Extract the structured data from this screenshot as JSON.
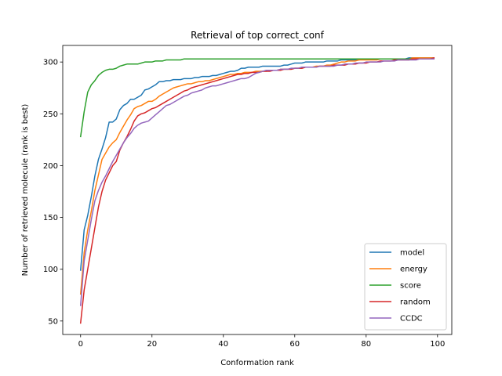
{
  "chart_data": {
    "type": "line",
    "title": "Retrieval of top correct_conf",
    "xlabel": "Conformation rank",
    "ylabel": "Number of retrieved molecule (rank is best)",
    "xlim": [
      -5,
      104
    ],
    "ylim": [
      37,
      316
    ],
    "xticks": [
      0,
      20,
      40,
      60,
      80,
      100
    ],
    "yticks": [
      50,
      100,
      150,
      200,
      250,
      300
    ],
    "grid": false,
    "legend_position": "lower-right",
    "x": [
      0,
      1,
      2,
      3,
      4,
      5,
      6,
      7,
      8,
      9,
      10,
      11,
      12,
      13,
      14,
      15,
      16,
      17,
      18,
      19,
      20,
      21,
      22,
      23,
      24,
      25,
      26,
      27,
      28,
      29,
      30,
      31,
      32,
      33,
      34,
      35,
      36,
      37,
      38,
      39,
      40,
      41,
      42,
      43,
      44,
      45,
      46,
      47,
      48,
      49,
      50,
      51,
      52,
      53,
      54,
      55,
      56,
      57,
      58,
      59,
      60,
      61,
      62,
      63,
      64,
      65,
      66,
      67,
      68,
      69,
      70,
      71,
      72,
      73,
      74,
      75,
      76,
      77,
      78,
      79,
      80,
      81,
      82,
      83,
      84,
      85,
      86,
      87,
      88,
      89,
      90,
      91,
      92,
      93,
      94,
      95,
      96,
      97,
      98,
      99
    ],
    "series": [
      {
        "name": "model",
        "color": "#1f77b4",
        "values": [
          99,
          138,
          152,
          170,
          190,
          206,
          216,
          227,
          242,
          242,
          245,
          254,
          258,
          260,
          264,
          264,
          266,
          268,
          273,
          274,
          276,
          278,
          281,
          281,
          282,
          282,
          283,
          283,
          283,
          284,
          284,
          284,
          285,
          285,
          286,
          286,
          286,
          287,
          287,
          288,
          289,
          290,
          291,
          291,
          292,
          294,
          294,
          295,
          295,
          295,
          295,
          296,
          296,
          296,
          296,
          296,
          296,
          297,
          297,
          298,
          299,
          299,
          299,
          300,
          300,
          300,
          300,
          300,
          300,
          301,
          301,
          301,
          301,
          302,
          302,
          302,
          302,
          302,
          302,
          303,
          303,
          303,
          303,
          303,
          303,
          303,
          303,
          303,
          303,
          303,
          303,
          303,
          304,
          304,
          304,
          304,
          304,
          304,
          304,
          304
        ]
      },
      {
        "name": "energy",
        "color": "#ff7f0e",
        "values": [
          76,
          116,
          138,
          156,
          176,
          191,
          206,
          212,
          218,
          222,
          225,
          232,
          238,
          244,
          249,
          255,
          257,
          258,
          260,
          262,
          262,
          264,
          267,
          269,
          271,
          273,
          275,
          276,
          277,
          278,
          279,
          279,
          280,
          281,
          281,
          282,
          282,
          283,
          284,
          285,
          286,
          287,
          288,
          288,
          289,
          289,
          290,
          290,
          290,
          291,
          291,
          291,
          291,
          292,
          292,
          292,
          293,
          293,
          293,
          293,
          294,
          294,
          294,
          295,
          295,
          295,
          296,
          296,
          296,
          297,
          297,
          298,
          299,
          300,
          300,
          301,
          301,
          301,
          302,
          302,
          302,
          302,
          302,
          302,
          303,
          303,
          303,
          303,
          303,
          303,
          303,
          303,
          303,
          304,
          304,
          304,
          304,
          304,
          304,
          304
        ]
      },
      {
        "name": "score",
        "color": "#2ca02c",
        "values": [
          228,
          252,
          271,
          278,
          282,
          287,
          290,
          292,
          293,
          293,
          294,
          296,
          297,
          298,
          298,
          298,
          298,
          299,
          300,
          300,
          300,
          301,
          301,
          301,
          302,
          302,
          302,
          302,
          302,
          303,
          303,
          303,
          303,
          303,
          303,
          303,
          303,
          303,
          303,
          303,
          303,
          303,
          303,
          303,
          303,
          303,
          303,
          303,
          303,
          303,
          303,
          303,
          303,
          303,
          303,
          303,
          303,
          303,
          303,
          303,
          303,
          303,
          303,
          303,
          303,
          303,
          303,
          303,
          303,
          303,
          303,
          303,
          303,
          303,
          303,
          303,
          303,
          303,
          303,
          303,
          303,
          303,
          303,
          303,
          303,
          303,
          303,
          303,
          303,
          303,
          303,
          303,
          303,
          303,
          303,
          303,
          303,
          303,
          303,
          303
        ]
      },
      {
        "name": "random",
        "color": "#d62728",
        "values": [
          48,
          80,
          100,
          120,
          140,
          160,
          175,
          186,
          193,
          200,
          204,
          215,
          222,
          228,
          235,
          243,
          248,
          250,
          251,
          253,
          255,
          256,
          258,
          260,
          262,
          264,
          266,
          268,
          270,
          272,
          273,
          275,
          276,
          277,
          278,
          279,
          280,
          281,
          282,
          283,
          284,
          285,
          286,
          287,
          288,
          288,
          289,
          289,
          290,
          290,
          290,
          291,
          291,
          291,
          292,
          292,
          292,
          293,
          293,
          293,
          294,
          294,
          294,
          295,
          295,
          295,
          295,
          296,
          296,
          296,
          296,
          297,
          297,
          297,
          297,
          298,
          298,
          298,
          299,
          299,
          299,
          300,
          300,
          300,
          301,
          301,
          301,
          301,
          302,
          302,
          302,
          302,
          302,
          303,
          303,
          303,
          303,
          303,
          303,
          304
        ]
      },
      {
        "name": "CCDC",
        "color": "#9467bd",
        "values": [
          65,
          108,
          128,
          148,
          166,
          176,
          184,
          190,
          197,
          204,
          210,
          216,
          222,
          227,
          231,
          236,
          239,
          241,
          242,
          243,
          246,
          249,
          252,
          255,
          258,
          259,
          261,
          263,
          265,
          267,
          268,
          270,
          271,
          272,
          273,
          275,
          276,
          277,
          277,
          278,
          279,
          280,
          281,
          282,
          283,
          284,
          284,
          285,
          287,
          289,
          290,
          291,
          292,
          292,
          292,
          292,
          293,
          293,
          293,
          294,
          294,
          294,
          295,
          295,
          295,
          295,
          295,
          296,
          296,
          296,
          296,
          296,
          297,
          297,
          298,
          298,
          298,
          299,
          299,
          299,
          300,
          300,
          300,
          300,
          300,
          301,
          301,
          301,
          301,
          302,
          302,
          302,
          302,
          302,
          302,
          303,
          303,
          303,
          303,
          303
        ]
      }
    ]
  }
}
